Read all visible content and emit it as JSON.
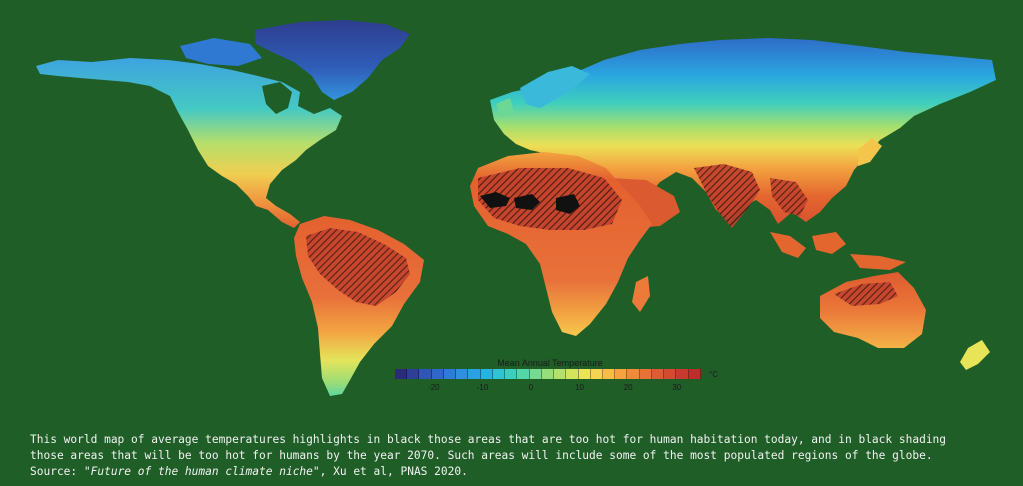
{
  "map": {
    "legend": {
      "title": "Mean Annual Temperature",
      "unit": "°C",
      "ticks": [
        "-20",
        "-10",
        "0",
        "10",
        "20",
        "30"
      ],
      "range": [
        -28,
        35
      ],
      "colors": [
        "#2b2b7a",
        "#2f3f98",
        "#2f56b5",
        "#3068c9",
        "#2f7cd8",
        "#2f8fe0",
        "#2aa1e2",
        "#25b4e0",
        "#2ec4d4",
        "#3ccfc0",
        "#55d6a7",
        "#74da8e",
        "#95de78",
        "#b6e067",
        "#d4e35c",
        "#ece457",
        "#f7d44f",
        "#f8bd46",
        "#f5a33f",
        "#ef8a3a",
        "#e77236",
        "#dd5c33",
        "#d24a30",
        "#c83a2e",
        "#bc2e2c"
      ],
      "tick_positions": [
        -20,
        -10,
        0,
        10,
        20,
        30
      ]
    },
    "water_color": "#1f5e27",
    "hot_region_color": "#111111",
    "hatched_region_color": "#6b2a1f"
  },
  "caption": {
    "line1": "This world map of average temperatures highlights in black those areas that are too hot for human habitation today, and in black shading",
    "line2": "those areas that will be too hot for humans by the year 2070. Such areas will include some of the most populated regions of the globe.",
    "source_prefix": "Source: \"",
    "source_title": "Future of the human climate niche",
    "source_suffix": "\", Xu et al, PNAS 2020."
  }
}
